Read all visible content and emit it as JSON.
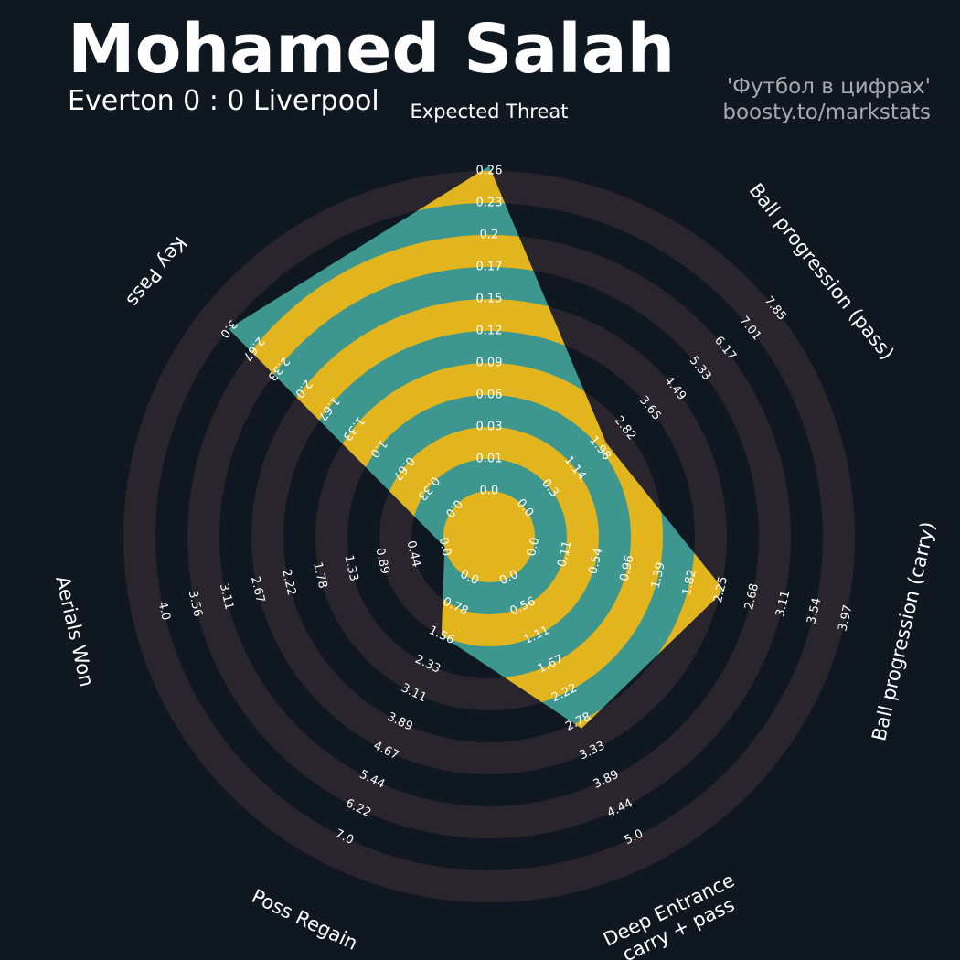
{
  "header": {
    "title": "Mohamed Salah",
    "subtitle": "Everton 0 : 0 Liverpool",
    "credit_line1": "'Футбол в цифрах'",
    "credit_line2": "boosty.to/markstats"
  },
  "colors": {
    "background": "#0f1820",
    "ring_band": "#2a252c",
    "polygon": "#3e978e",
    "polygon_band": "#e2b41e",
    "text": "#ffffff",
    "credit": "#a6a9ad"
  },
  "chart_data": {
    "type": "radar",
    "title": "Mohamed Salah",
    "subtitle": "Everton 0 : 0 Liverpool",
    "axes": [
      {
        "label": [
          "Expected Threat"
        ],
        "min": 0,
        "max": 0.26,
        "value": 0.24,
        "ticks": [
          "0.0",
          "0.01",
          "0.03",
          "0.06",
          "0.09",
          "0.12",
          "0.15",
          "0.17",
          "0.2",
          "0.23",
          "0.26"
        ]
      },
      {
        "label": [
          "Ball progression (pass)"
        ],
        "min": 0,
        "max": 9.53,
        "value": 2.82,
        "ticks": [
          "0.0",
          "0.3",
          "1.14",
          "1.98",
          "2.82",
          "3.65",
          "4.49",
          "5.33",
          "6.17",
          "7.01",
          "7.85"
        ]
      },
      {
        "label": [
          "Ball progression (carry)"
        ],
        "min": 0,
        "max": 4.83,
        "value": 2.68,
        "ticks": [
          "0.0",
          "0.11",
          "0.54",
          "0.96",
          "1.39",
          "1.82",
          "2.25",
          "2.68",
          "3.11",
          "3.54",
          "3.97"
        ]
      },
      {
        "label": [
          "Deep Entrance",
          "carry + pass"
        ],
        "min": 0,
        "max": 6.11,
        "value": 2.9,
        "ticks": [
          "0.0",
          "0.56",
          "1.11",
          "1.67",
          "2.22",
          "2.78",
          "3.33",
          "3.89",
          "4.44",
          "5.0"
        ]
      },
      {
        "label": [
          "Poss Regain"
        ],
        "min": 0,
        "max": 8.56,
        "value": 1.56,
        "ticks": [
          "0.0",
          "0.78",
          "1.56",
          "2.33",
          "3.11",
          "3.89",
          "4.67",
          "5.44",
          "6.22",
          "7.0"
        ]
      },
      {
        "label": [
          "Aerials Won"
        ],
        "min": 0,
        "max": 4.88,
        "value": 0,
        "ticks": [
          "0.0",
          "0.44",
          "0.89",
          "1.33",
          "1.78",
          "2.22",
          "2.67",
          "3.11",
          "3.56",
          "4.0"
        ]
      },
      {
        "label": [
          "Key Pass"
        ],
        "min": 0,
        "max": 3.67,
        "value": 3.0,
        "ticks": [
          "0.0",
          "0.33",
          "0.67",
          "1.0",
          "1.33",
          "1.67",
          "2.0",
          "2.33",
          "2.67",
          "3.0"
        ]
      }
    ]
  }
}
